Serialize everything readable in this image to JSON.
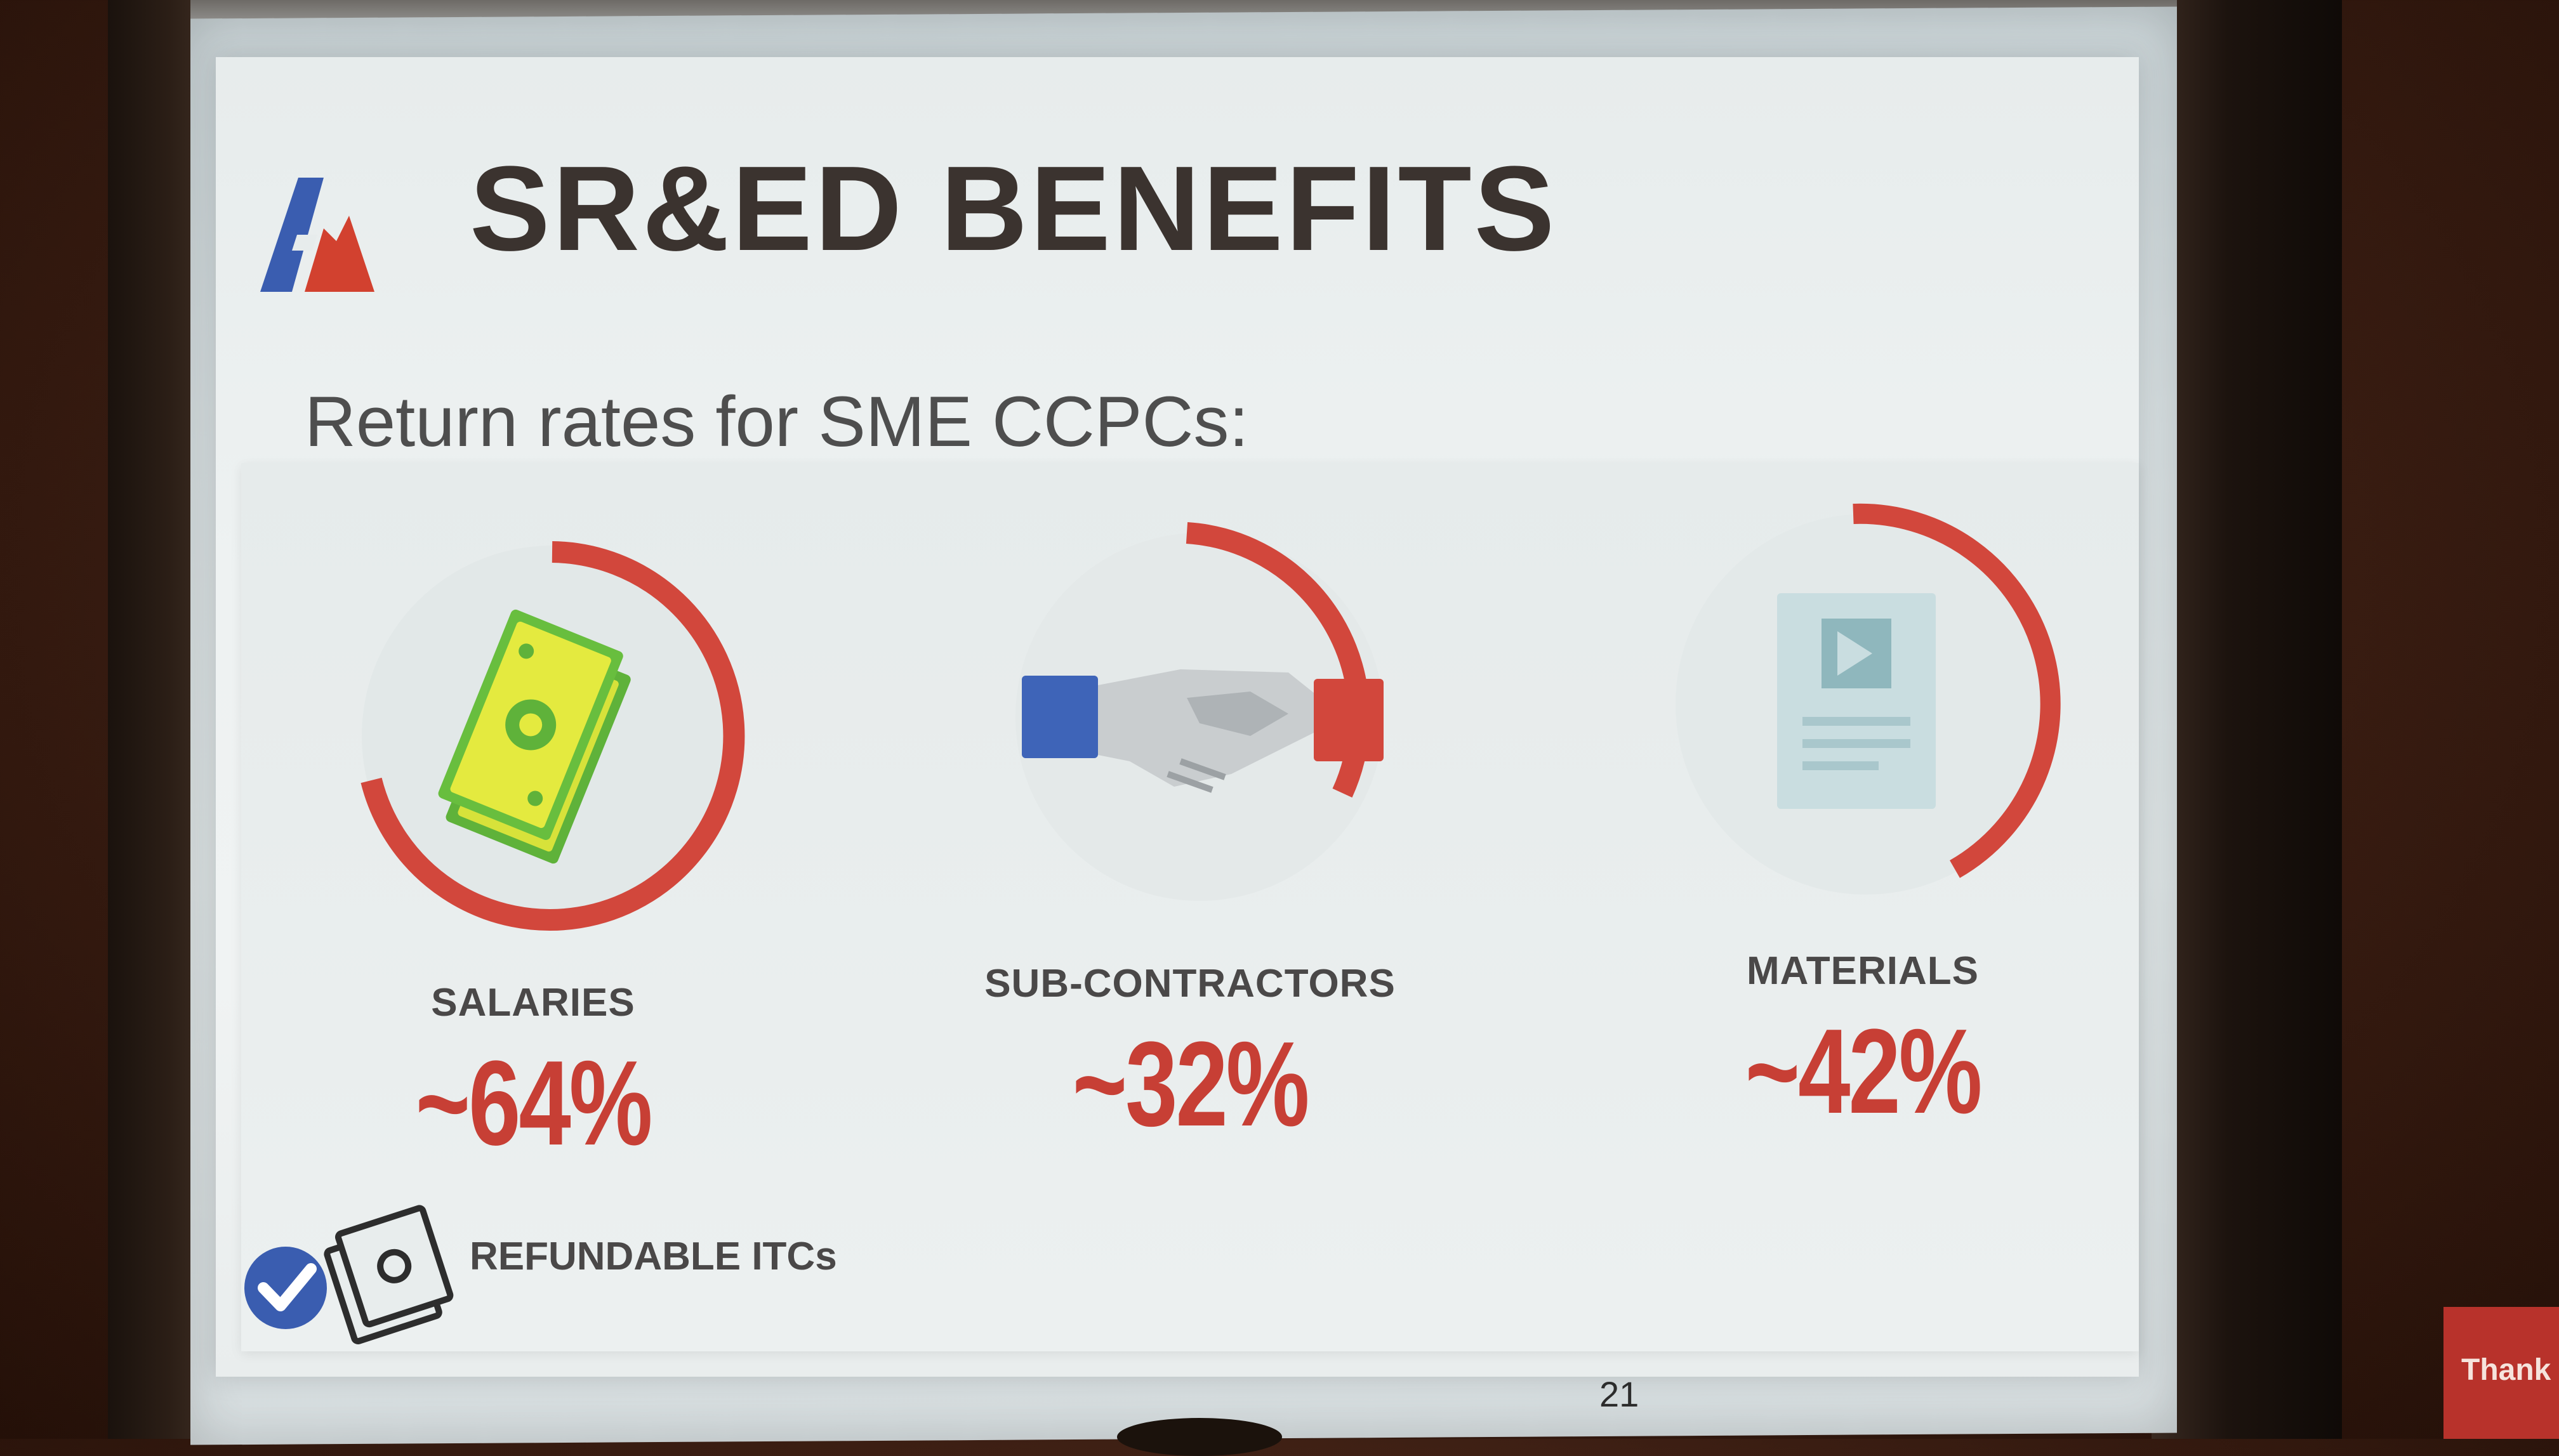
{
  "slide": {
    "title": "SR&ED BENEFITS",
    "subtitle": "Return rates for SME CCPCs:",
    "items": [
      {
        "label": "SALARIES",
        "value": "~64%",
        "icon": "money-bills-icon"
      },
      {
        "label": "SUB-CONTRACTORS",
        "value": "~32%",
        "icon": "handshake-icon"
      },
      {
        "label": "MATERIALS",
        "value": "~42%",
        "icon": "document-icon"
      }
    ],
    "footer_label": "REFUNDABLE ITCs",
    "page_number": "21"
  },
  "badge": {
    "text": "Thank"
  },
  "colors": {
    "accent": "#c73f35",
    "blue": "#3a5db0",
    "text": "#3b332f"
  }
}
